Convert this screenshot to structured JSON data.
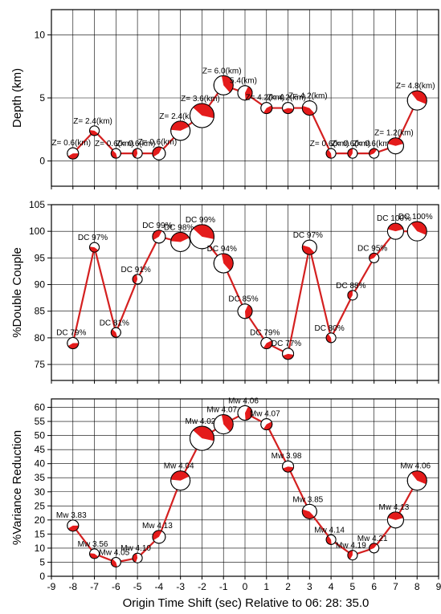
{
  "figure": {
    "xlabel": "Origin Time Shift (sec) Relative to 06: 28: 35.0",
    "x_ticks": [
      -9,
      -8,
      -7,
      -6,
      -5,
      -4,
      -3,
      -2,
      -1,
      0,
      1,
      2,
      3,
      4,
      5,
      6,
      7,
      8,
      9
    ],
    "line_color": "#d42020",
    "beachball_color": "#e41b1b"
  },
  "chart_data": [
    {
      "type": "line",
      "ylabel": "Depth (km)",
      "xlim": [
        -9,
        9
      ],
      "ylim": [
        -2,
        12
      ],
      "yticks": [
        0,
        5,
        10
      ],
      "grid": true,
      "x": [
        -8,
        -7,
        -6,
        -5,
        -4,
        -3,
        -2,
        -1,
        0,
        1,
        2,
        3,
        4,
        5,
        6,
        7,
        8
      ],
      "y": [
        0.6,
        2.4,
        0.6,
        0.6,
        0.6,
        2.4,
        3.6,
        6.0,
        5.4,
        4.2,
        4.2,
        4.2,
        0.6,
        0.6,
        0.6,
        1.2,
        4.8
      ],
      "labels": [
        "Z= 0.6(km)",
        "Z= 2.4(km)",
        "Z= 0.6(km)",
        "Z= 0.6(km)",
        "Z= 0.6(km)",
        "Z= 2.4(km)",
        "Z= 3.6(km)",
        "Z= 6.0(km)",
        "5.4(km)",
        "Z= 4.2(km)",
        "Z= 4.2(km)",
        "Z= 4.2(km)",
        "Z= 0.6(km)",
        "Z= 0.6(km)",
        "Z= 0.6(km)",
        "Z= 1.2(km)",
        "Z= 4.8(km)"
      ]
    },
    {
      "type": "line",
      "ylabel": "%Double Couple",
      "xlim": [
        -9,
        9
      ],
      "ylim": [
        72,
        105
      ],
      "yticks": [
        75,
        80,
        85,
        90,
        95,
        100,
        105
      ],
      "grid": true,
      "x": [
        -8,
        -7,
        -6,
        -5,
        -4,
        -3,
        -2,
        -1,
        0,
        1,
        2,
        3,
        4,
        5,
        6,
        7,
        8
      ],
      "y": [
        79,
        97,
        81,
        91,
        99,
        98,
        99,
        94,
        85,
        79,
        77,
        97,
        80,
        88,
        95,
        100,
        100
      ],
      "labels": [
        "DC 79%",
        "DC 97%",
        "DC 81%",
        "DC 91%",
        "DC 99%",
        "DC 98%",
        "DC 99%",
        "DC 94%",
        "DC 85%",
        "DC 79%",
        "DC 77%",
        "DC 97%",
        "DC 80%",
        "DC 88%",
        "DC 95%",
        "DC 100%",
        "DC 100%"
      ]
    },
    {
      "type": "line",
      "ylabel": "%Variance Reduction",
      "xlabel": "Origin Time Shift (sec) Relative to 06: 28: 35.0",
      "xlim": [
        -9,
        9
      ],
      "ylim": [
        0,
        63
      ],
      "yticks": [
        0,
        5,
        10,
        15,
        20,
        25,
        30,
        35,
        40,
        45,
        50,
        55,
        60
      ],
      "grid": true,
      "x": [
        -8,
        -7,
        -6,
        -5,
        -4,
        -3,
        -2,
        -1,
        0,
        1,
        2,
        3,
        4,
        5,
        6,
        7,
        8
      ],
      "y": [
        18,
        8,
        5,
        6.5,
        14,
        34,
        49,
        54,
        58,
        54,
        39,
        23,
        13,
        7.5,
        10,
        20,
        34
      ],
      "labels": [
        "Mw 3.83",
        "Mw 3.56",
        "Mw 4.05",
        "Mw 4.10",
        "Mw 4.13",
        "Mw 4.04",
        "Mw 4.02",
        "Mw 4.07",
        "Mw 4.06",
        "Mw 4.07",
        "Mw 3.98",
        "Mw 3.85",
        "Mw 4.14",
        "Mw 4.19",
        "Mw 4.21",
        "Mw 4.13",
        "Mw 4.06"
      ]
    }
  ]
}
